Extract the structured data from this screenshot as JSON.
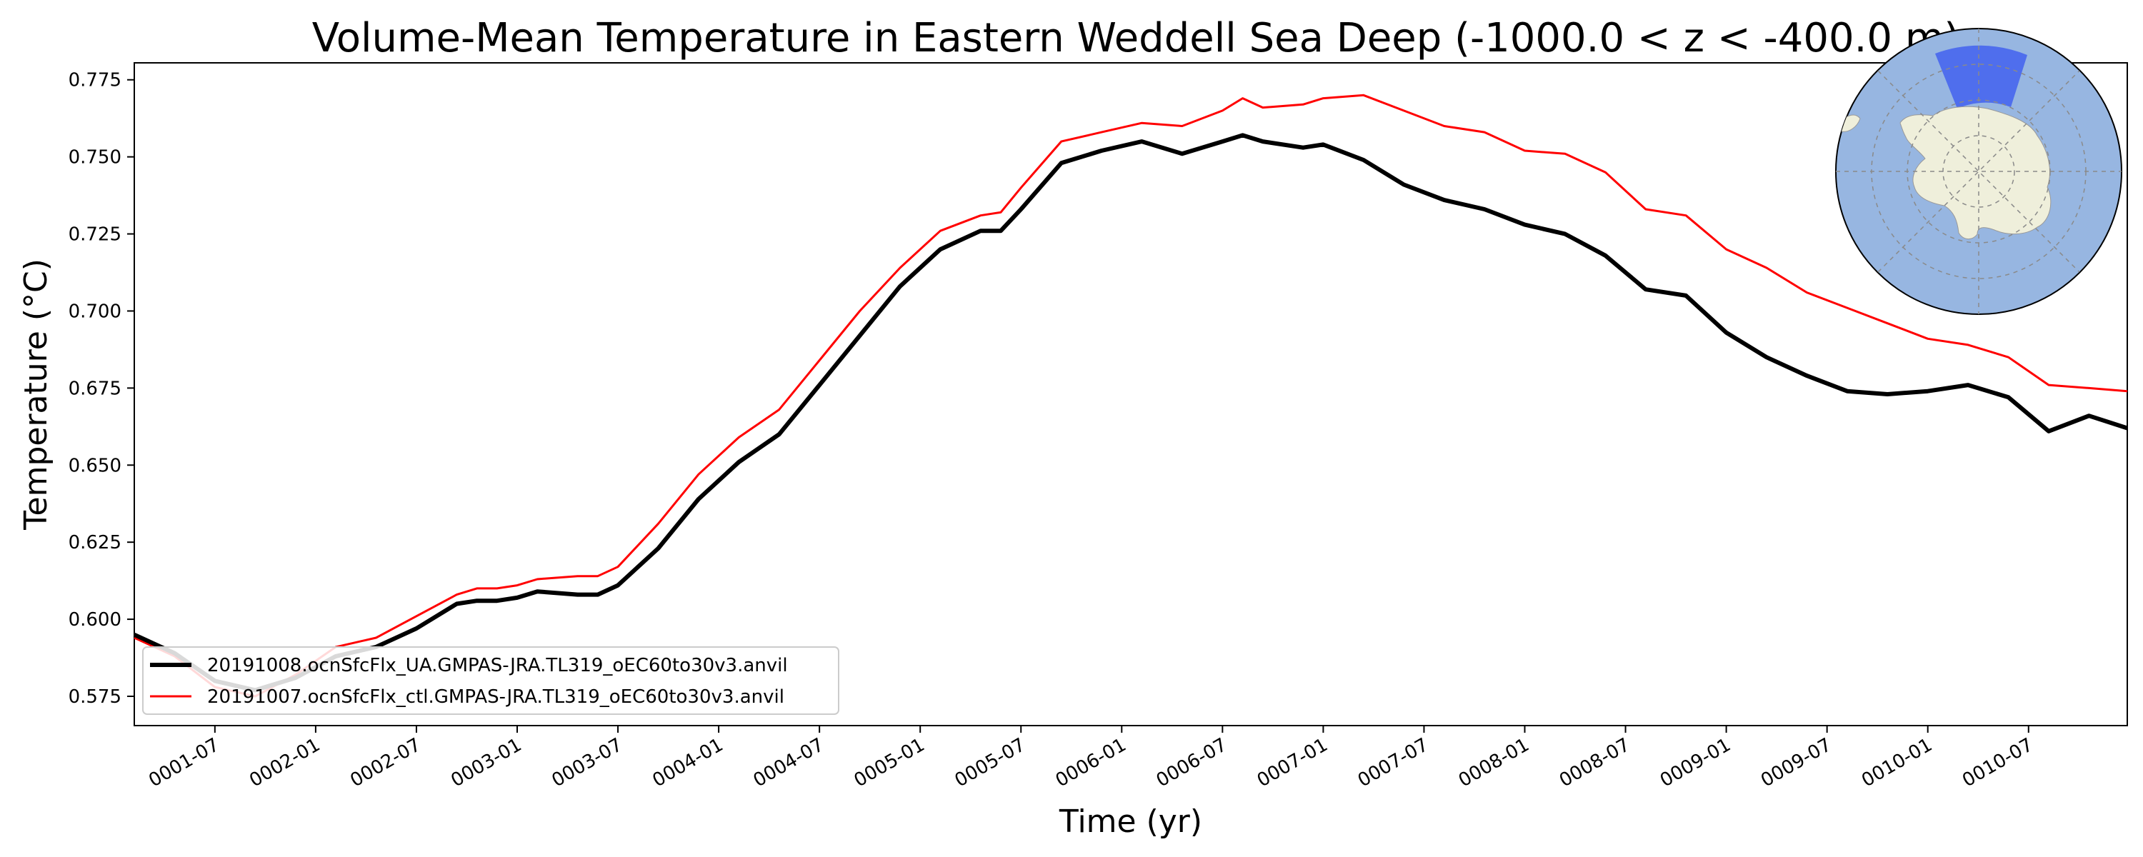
{
  "chart_data": {
    "type": "line",
    "title": "Volume-Mean Temperature in Eastern Weddell Sea Deep (-1000.0 < z < -400.0 m)",
    "xlabel": "Time (yr)",
    "ylabel": "Temperature (°C)",
    "xlim": [
      1.1,
      10.99
    ],
    "ylim": [
      0.5655,
      0.7805
    ],
    "x_ticks": [
      {
        "value": 1.5,
        "label": "0001-07"
      },
      {
        "value": 2.0,
        "label": "0002-01"
      },
      {
        "value": 2.5,
        "label": "0002-07"
      },
      {
        "value": 3.0,
        "label": "0003-01"
      },
      {
        "value": 3.5,
        "label": "0003-07"
      },
      {
        "value": 4.0,
        "label": "0004-01"
      },
      {
        "value": 4.5,
        "label": "0004-07"
      },
      {
        "value": 5.0,
        "label": "0005-01"
      },
      {
        "value": 5.5,
        "label": "0005-07"
      },
      {
        "value": 6.0,
        "label": "0006-01"
      },
      {
        "value": 6.5,
        "label": "0006-07"
      },
      {
        "value": 7.0,
        "label": "0007-01"
      },
      {
        "value": 7.5,
        "label": "0007-07"
      },
      {
        "value": 8.0,
        "label": "0008-01"
      },
      {
        "value": 8.5,
        "label": "0008-07"
      },
      {
        "value": 9.0,
        "label": "0009-01"
      },
      {
        "value": 9.5,
        "label": "0009-07"
      },
      {
        "value": 10.0,
        "label": "0010-01"
      },
      {
        "value": 10.5,
        "label": "0010-07"
      }
    ],
    "y_ticks": [
      {
        "value": 0.575,
        "label": "0.575"
      },
      {
        "value": 0.6,
        "label": "0.600"
      },
      {
        "value": 0.625,
        "label": "0.625"
      },
      {
        "value": 0.65,
        "label": "0.650"
      },
      {
        "value": 0.675,
        "label": "0.675"
      },
      {
        "value": 0.7,
        "label": "0.700"
      },
      {
        "value": 0.725,
        "label": "0.725"
      },
      {
        "value": 0.75,
        "label": "0.750"
      },
      {
        "value": 0.775,
        "label": "0.775"
      }
    ],
    "grid": false,
    "legend_position": "lower-left",
    "series": [
      {
        "name": "20191008.ocnSfcFlx_UA.GMPAS-JRA.TL319_oEC60to30v3.anvil",
        "color": "#000000",
        "x": [
          1.1,
          1.3,
          1.5,
          1.7,
          1.9,
          2.1,
          2.3,
          2.5,
          2.7,
          2.8,
          2.9,
          3.0,
          3.1,
          3.3,
          3.4,
          3.5,
          3.7,
          3.9,
          4.1,
          4.3,
          4.5,
          4.7,
          4.9,
          5.1,
          5.3,
          5.4,
          5.5,
          5.7,
          5.9,
          6.1,
          6.3,
          6.5,
          6.6,
          6.7,
          6.9,
          7.0,
          7.2,
          7.4,
          7.6,
          7.8,
          8.0,
          8.2,
          8.4,
          8.6,
          8.8,
          9.0,
          9.2,
          9.4,
          9.6,
          9.8,
          10.0,
          10.2,
          10.4,
          10.6,
          10.8,
          10.99
        ],
        "values": [
          0.595,
          0.589,
          0.58,
          0.577,
          0.581,
          0.588,
          0.591,
          0.597,
          0.605,
          0.606,
          0.606,
          0.607,
          0.609,
          0.608,
          0.608,
          0.611,
          0.623,
          0.639,
          0.651,
          0.66,
          0.676,
          0.692,
          0.708,
          0.72,
          0.726,
          0.726,
          0.733,
          0.748,
          0.752,
          0.755,
          0.751,
          0.755,
          0.757,
          0.755,
          0.753,
          0.754,
          0.749,
          0.741,
          0.736,
          0.733,
          0.728,
          0.725,
          0.718,
          0.707,
          0.705,
          0.693,
          0.685,
          0.679,
          0.674,
          0.673,
          0.674,
          0.676,
          0.672,
          0.661,
          0.666,
          0.662
        ]
      },
      {
        "name": "20191007.ocnSfcFlx_ctl.GMPAS-JRA.TL319_oEC60to30v3.anvil",
        "color": "#ff0000",
        "x": [
          1.1,
          1.3,
          1.5,
          1.7,
          1.9,
          2.1,
          2.3,
          2.5,
          2.7,
          2.8,
          2.9,
          3.0,
          3.1,
          3.3,
          3.4,
          3.5,
          3.7,
          3.9,
          4.1,
          4.3,
          4.5,
          4.7,
          4.9,
          5.1,
          5.3,
          5.4,
          5.5,
          5.7,
          5.9,
          6.1,
          6.3,
          6.5,
          6.6,
          6.7,
          6.9,
          7.0,
          7.2,
          7.4,
          7.6,
          7.8,
          8.0,
          8.2,
          8.4,
          8.6,
          8.8,
          9.0,
          9.2,
          9.4,
          9.6,
          9.8,
          10.0,
          10.2,
          10.4,
          10.6,
          10.8,
          10.99
        ],
        "values": [
          0.594,
          0.588,
          0.578,
          0.575,
          0.582,
          0.591,
          0.594,
          0.601,
          0.608,
          0.61,
          0.61,
          0.611,
          0.613,
          0.614,
          0.614,
          0.617,
          0.631,
          0.647,
          0.659,
          0.668,
          0.684,
          0.7,
          0.714,
          0.726,
          0.731,
          0.732,
          0.74,
          0.755,
          0.758,
          0.761,
          0.76,
          0.765,
          0.769,
          0.766,
          0.767,
          0.769,
          0.77,
          0.765,
          0.76,
          0.758,
          0.752,
          0.751,
          0.745,
          0.733,
          0.731,
          0.72,
          0.714,
          0.706,
          0.701,
          0.696,
          0.691,
          0.689,
          0.685,
          0.676,
          0.675,
          0.674
        ]
      }
    ]
  },
  "inset_map": {
    "ocean_color": "#97b6e1",
    "land_color": "#efefdb",
    "region_color": "#3d5cf0"
  }
}
